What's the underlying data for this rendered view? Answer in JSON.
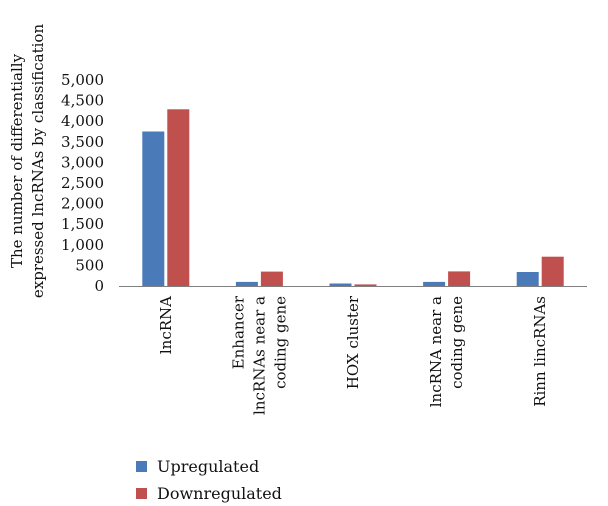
{
  "chart_data": {
    "type": "bar",
    "ylabel": [
      "The number of differentially",
      "expressed lncRNAs by classification"
    ],
    "xlabel": "",
    "ylim": [
      0,
      5000
    ],
    "yticks": [
      0,
      500,
      1000,
      1500,
      2000,
      2500,
      3000,
      3500,
      4000,
      4500,
      5000
    ],
    "ytick_labels": [
      "0",
      "500",
      "1,000",
      "1,500",
      "2,000",
      "2,500",
      "3,000",
      "3,500",
      "4,000",
      "4,500",
      "5,000"
    ],
    "categories": [
      [
        "lncRNA"
      ],
      [
        "Enhancer",
        "lncRNAs near a",
        "coding gene"
      ],
      [
        "HOX cluster"
      ],
      [
        "lncRNA near a",
        "coding gene"
      ],
      [
        "Rinn lincRNAs"
      ]
    ],
    "series": [
      {
        "name": "Upregulated",
        "color": "#4a7ab8",
        "values": [
          3750,
          100,
          60,
          100,
          340
        ]
      },
      {
        "name": "Downregulated",
        "color": "#c0504d",
        "values": [
          4290,
          350,
          40,
          355,
          710
        ]
      }
    ],
    "legend_position": "bottom",
    "grid": false
  }
}
